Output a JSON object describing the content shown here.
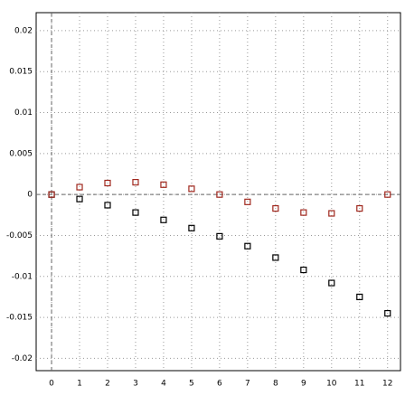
{
  "chart_data": {
    "type": "scatter",
    "x": [
      0,
      1,
      2,
      3,
      4,
      5,
      6,
      7,
      8,
      9,
      10,
      11,
      12
    ],
    "series": [
      {
        "color": "#000000",
        "values": [
          0,
          -0.00055,
          -0.0013,
          -0.0022,
          -0.0031,
          -0.0041,
          -0.0051,
          -0.0063,
          -0.0077,
          -0.0092,
          -0.0108,
          -0.0125,
          -0.0145
        ]
      },
      {
        "color": "#a0281e",
        "values": [
          0,
          0.0009,
          0.0014,
          0.0015,
          0.0012,
          0.0007,
          0,
          -0.0009,
          -0.0017,
          -0.0022,
          -0.0023,
          -0.0017,
          0
        ]
      }
    ],
    "xlim": [
      -0.55,
      12.46
    ],
    "ylim": [
      -0.0215,
      0.0222
    ],
    "xticks": [
      0,
      1,
      2,
      3,
      4,
      5,
      6,
      7,
      8,
      9,
      10,
      11,
      12
    ],
    "yticks": [
      0.02,
      0.015,
      0.01,
      0.005,
      0,
      -0.005,
      -0.01,
      -0.015,
      -0.02
    ],
    "grid": true
  }
}
